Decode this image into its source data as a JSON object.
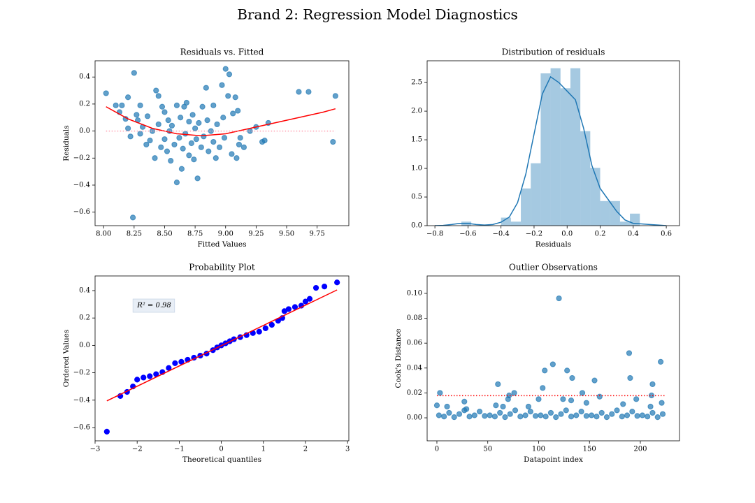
{
  "title": "Brand 2: Regression Model Diagnostics",
  "chart_data": [
    {
      "type": "scatter",
      "title": "Residuals vs. Fitted",
      "x_label": "Fitted Values",
      "y_label": "Residuals",
      "xlim": [
        7.93,
        10.01
      ],
      "ylim": [
        -0.7,
        0.52
      ],
      "xticks": [
        {
          "value": 8,
          "label": "8.00"
        },
        {
          "value": 8.25,
          "label": "8.25"
        },
        {
          "value": 8.5,
          "label": "8.50"
        },
        {
          "value": 8.75,
          "label": "8.75"
        },
        {
          "value": 9,
          "label": "9.00"
        },
        {
          "value": 9.25,
          "label": "9.25"
        },
        {
          "value": 9.5,
          "label": "9.50"
        },
        {
          "value": 9.75,
          "label": "9.75"
        }
      ],
      "yticks": [
        {
          "value": -0.6,
          "label": "−0.6"
        },
        {
          "value": -0.4,
          "label": "−0.4"
        },
        {
          "value": -0.2,
          "label": "−0.2"
        },
        {
          "value": 0,
          "label": "0.0"
        },
        0.2,
        0.4
      ],
      "series": [
        {
          "color": "#1f77b4",
          "alpha": 0.7,
          "x": [
            8.02,
            8.1,
            8.13,
            8.15,
            8.2,
            8.25,
            8.24,
            8.18,
            8.2,
            8.22,
            8.27,
            8.28,
            8.3,
            8.3,
            8.32,
            8.35,
            8.36,
            8.38,
            8.4,
            8.42,
            8.43,
            8.45,
            8.45,
            8.47,
            8.48,
            8.5,
            8.5,
            8.52,
            8.53,
            8.54,
            8.55,
            8.56,
            8.58,
            8.6,
            8.6,
            8.62,
            8.63,
            8.64,
            8.65,
            8.66,
            8.67,
            8.68,
            8.7,
            8.7,
            8.72,
            8.73,
            8.74,
            8.75,
            8.76,
            8.77,
            8.78,
            8.8,
            8.81,
            8.82,
            8.84,
            8.85,
            8.86,
            8.88,
            8.9,
            8.9,
            8.92,
            8.93,
            8.95,
            8.97,
            8.98,
            8.99,
            9.0,
            9.02,
            9.03,
            9.05,
            9.06,
            9.08,
            9.09,
            9.1,
            9.11,
            9.12,
            9.15,
            9.2,
            9.25,
            9.3,
            9.32,
            9.35,
            9.6,
            9.68,
            9.88,
            9.9
          ],
          "values": [
            0.28,
            0.19,
            0.14,
            0.19,
            0.25,
            0.43,
            -0.64,
            0.09,
            0.02,
            -0.04,
            0.12,
            0.08,
            0.19,
            -0.02,
            0.03,
            -0.1,
            0.11,
            -0.07,
            0.0,
            -0.2,
            0.3,
            0.26,
            0.05,
            -0.12,
            0.18,
            -0.06,
            0.14,
            -0.15,
            0.08,
            0.0,
            -0.22,
            0.04,
            -0.1,
            0.19,
            -0.38,
            -0.05,
            0.1,
            -0.28,
            -0.13,
            0.18,
            -0.02,
            0.21,
            -0.18,
            0.07,
            -0.09,
            0.12,
            -0.21,
            0.02,
            -0.06,
            -0.35,
            0.06,
            -0.12,
            0.18,
            -0.04,
            0.32,
            0.08,
            -0.15,
            0.0,
            -0.08,
            0.19,
            -0.2,
            0.05,
            -0.12,
            0.34,
            0.1,
            -0.05,
            0.46,
            0.26,
            0.42,
            -0.17,
            0.13,
            0.25,
            -0.2,
            0.15,
            -0.1,
            -0.05,
            -0.12,
            0.0,
            0.03,
            -0.08,
            -0.07,
            0.06,
            0.29,
            0.29,
            -0.08,
            0.26
          ]
        },
        {
          "type": "line",
          "color": "#ff0000",
          "x": [
            8.02,
            8.2,
            8.4,
            8.6,
            8.8,
            9.0,
            9.2,
            9.4,
            9.6,
            9.8,
            9.9
          ],
          "values": [
            0.18,
            0.09,
            0.02,
            -0.02,
            -0.035,
            -0.02,
            0.02,
            0.06,
            0.1,
            0.14,
            0.165
          ]
        },
        {
          "type": "line",
          "color": "#ff9fb0",
          "style": "dotted",
          "x": [
            8.02,
            9.9
          ],
          "values": [
            0,
            0
          ]
        }
      ]
    },
    {
      "type": "histogram",
      "title": "Distribution of residuals",
      "x_label": "Residuals",
      "xlim": [
        -0.847,
        0.68
      ],
      "ylim": [
        0,
        2.88
      ],
      "xticks": [
        {
          "value": -0.8,
          "label": "−0.8"
        },
        {
          "value": -0.6,
          "label": "−0.6"
        },
        {
          "value": -0.4,
          "label": "−0.4"
        },
        {
          "value": -0.2,
          "label": "−0.2"
        },
        {
          "value": 0,
          "label": "0.0"
        },
        0.2,
        0.4,
        0.6
      ],
      "yticks": [
        {
          "value": 0,
          "label": "0.0"
        },
        0.5,
        {
          "value": 1,
          "label": "1.0"
        },
        1.5,
        {
          "value": 2,
          "label": "2.0"
        },
        2.5
      ],
      "series": [
        {
          "color": "#1f77b4",
          "alpha": 0.4,
          "bins": [
            -0.64,
            -0.58,
            -0.52,
            -0.46,
            -0.4,
            -0.34,
            -0.28,
            -0.22,
            -0.16,
            -0.1,
            -0.04,
            0.02,
            0.08,
            0.14,
            0.2,
            0.26,
            0.32,
            0.38,
            0.44
          ],
          "values": [
            0.07,
            0,
            0,
            0,
            0.14,
            0.07,
            0.65,
            1.09,
            2.66,
            2.75,
            2.4,
            2.75,
            1.65,
            1.01,
            0.43,
            0.43,
            0.07,
            0.21
          ]
        },
        {
          "type": "line",
          "color": "#1f77b4",
          "x": [
            -0.8,
            -0.75,
            -0.7,
            -0.65,
            -0.6,
            -0.55,
            -0.5,
            -0.45,
            -0.4,
            -0.35,
            -0.3,
            -0.25,
            -0.2,
            -0.15,
            -0.1,
            -0.05,
            0,
            0.05,
            0.1,
            0.15,
            0.2,
            0.25,
            0.3,
            0.35,
            0.4,
            0.45,
            0.5,
            0.55,
            0.6
          ],
          "values": [
            0,
            0.005,
            0.02,
            0.04,
            0.04,
            0.02,
            0.01,
            0.02,
            0.06,
            0.15,
            0.4,
            0.9,
            1.6,
            2.3,
            2.6,
            2.5,
            2.35,
            2.2,
            1.7,
            1.05,
            0.65,
            0.45,
            0.25,
            0.1,
            0.04,
            0.03,
            0.02,
            0.01,
            0
          ]
        }
      ]
    },
    {
      "type": "scatter",
      "title": "Probability Plot",
      "x_label": "Theoretical quantiles",
      "y_label": "Ordered Values",
      "xlim": [
        -3.0,
        3.03
      ],
      "ylim": [
        -0.697,
        0.507
      ],
      "xticks": [
        {
          "value": -3,
          "label": "−3"
        },
        {
          "value": -2,
          "label": "−2"
        },
        {
          "value": -1,
          "label": "−1"
        },
        0,
        1,
        2,
        3
      ],
      "yticks": [
        {
          "value": -0.6,
          "label": "−0.6"
        },
        {
          "value": -0.4,
          "label": "−0.4"
        },
        {
          "value": -0.2,
          "label": "−0.2"
        },
        {
          "value": 0,
          "label": "0.0"
        },
        0.2,
        0.4
      ],
      "annotations": [
        {
          "text": "R² = 0.98",
          "x": -2.0,
          "y": 0.29
        }
      ],
      "series": [
        {
          "color": "#0000ff",
          "alpha": 1,
          "x": [
            -2.72,
            -2.4,
            -2.24,
            -2.1,
            -2.0,
            -1.85,
            -1.7,
            -1.55,
            -1.4,
            -1.25,
            -1.1,
            -0.95,
            -0.8,
            -0.65,
            -0.5,
            -0.35,
            -0.2,
            -0.1,
            0,
            0.1,
            0.2,
            0.3,
            0.45,
            0.6,
            0.75,
            0.9,
            1.05,
            1.2,
            1.35,
            1.45,
            1.5,
            1.6,
            1.75,
            1.9,
            2.0,
            2.1,
            2.25,
            2.45,
            2.75
          ],
          "values": [
            -0.63,
            -0.37,
            -0.34,
            -0.3,
            -0.25,
            -0.235,
            -0.225,
            -0.21,
            -0.195,
            -0.165,
            -0.13,
            -0.12,
            -0.105,
            -0.09,
            -0.075,
            -0.06,
            -0.035,
            -0.015,
            0.0,
            0.015,
            0.03,
            0.045,
            0.06,
            0.075,
            0.09,
            0.1,
            0.125,
            0.15,
            0.18,
            0.2,
            0.25,
            0.265,
            0.28,
            0.29,
            0.32,
            0.34,
            0.42,
            0.43,
            0.46
          ]
        },
        {
          "type": "line",
          "color": "#ff0000",
          "x": [
            -2.72,
            2.75
          ],
          "values": [
            -0.405,
            0.405
          ]
        }
      ]
    },
    {
      "type": "scatter",
      "title": "Outlier Observations",
      "x_label": "Datapoint index",
      "y_label": "Cook's Distance",
      "xlim": [
        -9.6,
        238.5
      ],
      "ylim": [
        -0.0185,
        0.114
      ],
      "xticks": [
        0,
        50,
        100,
        150,
        200
      ],
      "yticks": [
        {
          "value": 0,
          "label": "0.00"
        },
        {
          "value": 0.02,
          "label": "0.02"
        },
        {
          "value": 0.04,
          "label": "0.04"
        },
        {
          "value": 0.06,
          "label": "0.06"
        },
        {
          "value": 0.08,
          "label": "0.08"
        },
        {
          "value": 0.1,
          "label": "0.10"
        }
      ],
      "series": [
        {
          "color": "#1f77b4",
          "alpha": 0.7,
          "x": [
            2,
            7,
            12,
            17,
            22,
            27,
            32,
            37,
            42,
            47,
            52,
            57,
            62,
            67,
            72,
            77,
            82,
            87,
            92,
            97,
            102,
            107,
            112,
            117,
            122,
            127,
            132,
            137,
            142,
            147,
            152,
            157,
            162,
            167,
            172,
            177,
            182,
            187,
            192,
            197,
            202,
            207,
            212,
            217,
            222,
            0,
            3,
            10,
            27,
            29,
            58,
            60,
            65,
            70,
            71,
            76,
            90,
            100,
            104,
            106,
            114,
            120,
            124,
            128,
            133,
            132,
            143,
            147,
            155,
            160,
            183,
            189,
            190,
            196,
            210,
            211,
            212,
            220,
            221
          ],
          "values": [
            0.002,
            0.001,
            0.004,
            0.0005,
            0.003,
            0.006,
            0.001,
            0.002,
            0.005,
            0.0015,
            0.002,
            0.001,
            0.004,
            0.0005,
            0.003,
            0.006,
            0.001,
            0.002,
            0.005,
            0.0015,
            0.002,
            0.001,
            0.004,
            0.0005,
            0.003,
            0.006,
            0.001,
            0.002,
            0.005,
            0.0015,
            0.002,
            0.001,
            0.004,
            0.0005,
            0.003,
            0.006,
            0.001,
            0.002,
            0.005,
            0.0015,
            0.002,
            0.001,
            0.004,
            0.0005,
            0.003,
            0.01,
            0.02,
            0.009,
            0.013,
            0.007,
            0.01,
            0.027,
            0.009,
            0.015,
            0.018,
            0.02,
            0.009,
            0.015,
            0.024,
            0.038,
            0.043,
            0.096,
            0.015,
            0.038,
            0.032,
            0.014,
            0.02,
            0.012,
            0.03,
            0.017,
            0.011,
            0.052,
            0.032,
            0.015,
            0.009,
            0.018,
            0.027,
            0.045,
            0.012
          ]
        },
        {
          "type": "line",
          "color": "#ff0000",
          "style": "dotted",
          "x": [
            0,
            225
          ],
          "values": [
            0.0178,
            0.0178
          ]
        }
      ]
    }
  ]
}
